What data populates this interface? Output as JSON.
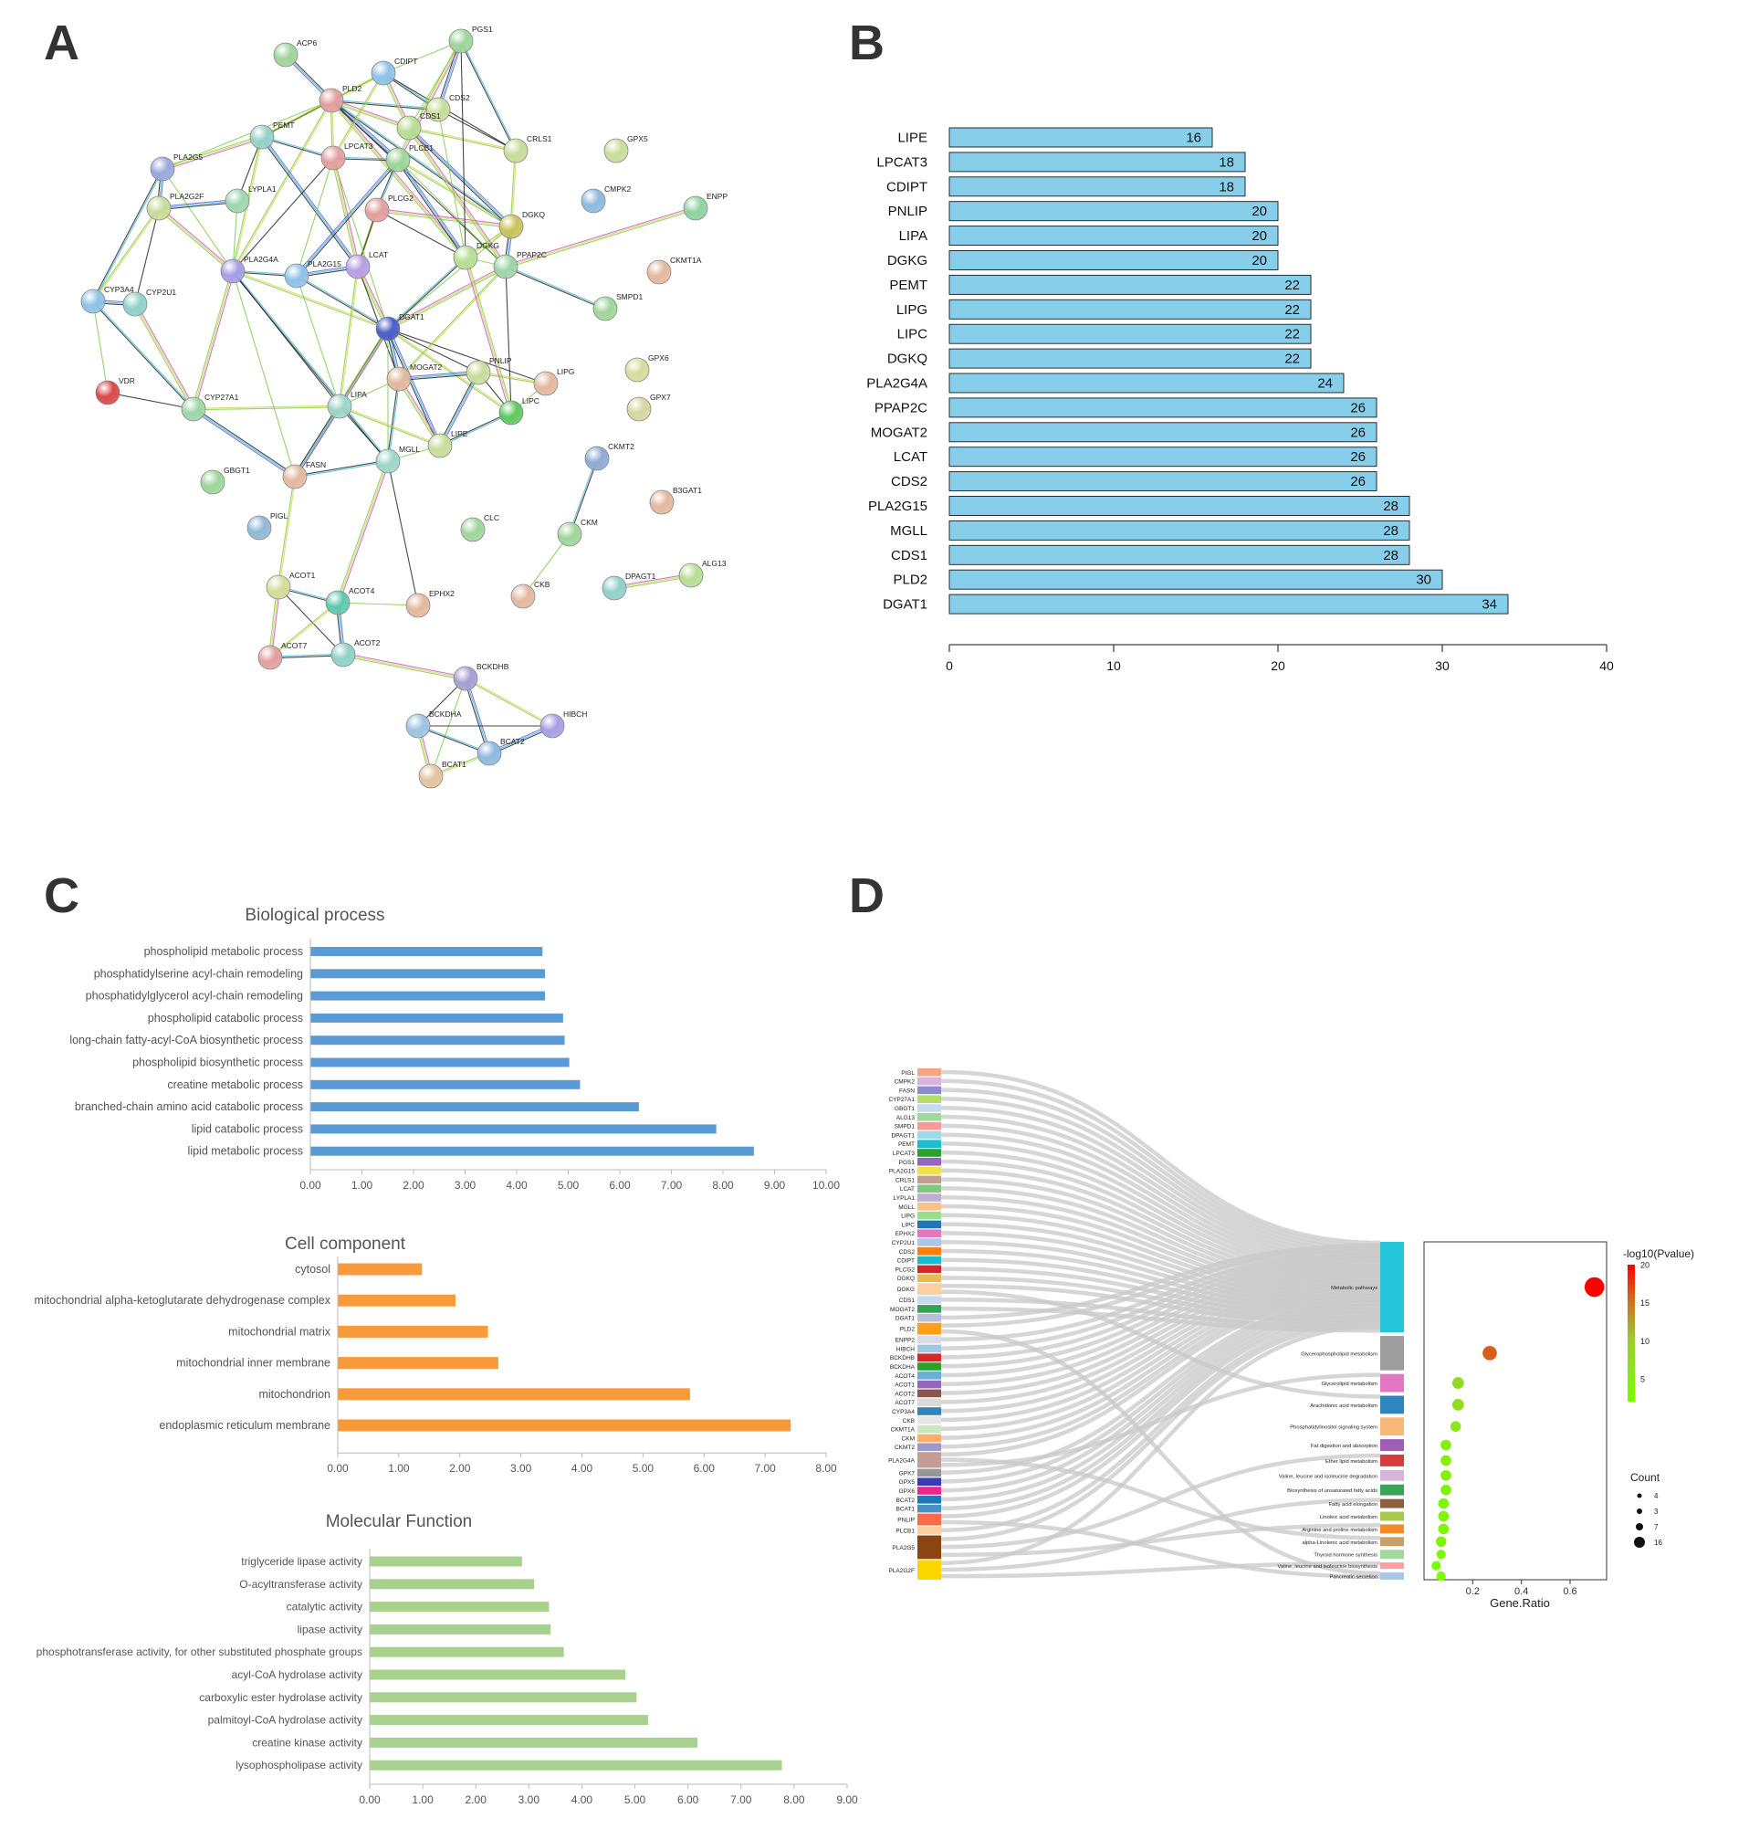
{
  "panel_labels": {
    "a": "A",
    "b": "B",
    "c": "C",
    "d": "D"
  },
  "chart_data": [
    {
      "id": "A",
      "type": "network",
      "title": "",
      "nodes": [
        {
          "id": "ACP6",
          "color": "#9fd59b"
        },
        {
          "id": "PGS1",
          "color": "#9fd59b"
        },
        {
          "id": "CDIPT",
          "color": "#8fc3e8"
        },
        {
          "id": "PLD2",
          "color": "#e39f9f"
        },
        {
          "id": "CDS2",
          "color": "#c9dc9a"
        },
        {
          "id": "CDS1",
          "color": "#b8dd93"
        },
        {
          "id": "CRLS1",
          "color": "#c9dc9a"
        },
        {
          "id": "GPX5",
          "color": "#c9dc9a"
        },
        {
          "id": "CMPK2",
          "color": "#8fb8e0"
        },
        {
          "id": "ENPP",
          "color": "#8ed1a0"
        },
        {
          "id": "PEMT",
          "color": "#93d1c9"
        },
        {
          "id": "LPCAT3",
          "color": "#e39f9f"
        },
        {
          "id": "PLCB1",
          "color": "#9fd59b"
        },
        {
          "id": "PLA2G5",
          "color": "#9aa9de"
        },
        {
          "id": "PLA2G2F",
          "color": "#c9dc9a"
        },
        {
          "id": "LYPLA1",
          "color": "#9fd5b0"
        },
        {
          "id": "PLCG2",
          "color": "#e39f9f"
        },
        {
          "id": "DGKQ",
          "color": "#c9c35a"
        },
        {
          "id": "CKMT1A",
          "color": "#e3b89f"
        },
        {
          "id": "DGKG",
          "color": "#b8dd93"
        },
        {
          "id": "PPAP2C",
          "color": "#9fd5a8"
        },
        {
          "id": "PLA2G4A",
          "color": "#a69fe3"
        },
        {
          "id": "PLA2G15",
          "color": "#8fc3e8"
        },
        {
          "id": "LCAT",
          "color": "#b79fe3"
        },
        {
          "id": "CYP3A4",
          "color": "#8fc3e8"
        },
        {
          "id": "CYP2U1",
          "color": "#8fd1c9"
        },
        {
          "id": "SMPD1",
          "color": "#9fd59b"
        },
        {
          "id": "DGAT1",
          "color": "#4a5fc9"
        },
        {
          "id": "GPX6",
          "color": "#d5dc9a"
        },
        {
          "id": "MOGAT2",
          "color": "#e3b89f"
        },
        {
          "id": "PNLIP",
          "color": "#c9dc9a"
        },
        {
          "id": "LIPG",
          "color": "#e3b89f"
        },
        {
          "id": "LIPC",
          "color": "#5fc95f"
        },
        {
          "id": "VDR",
          "color": "#d94a4a"
        },
        {
          "id": "CYP27A1",
          "color": "#9fd5a8"
        },
        {
          "id": "LIPA",
          "color": "#9fd5c9"
        },
        {
          "id": "GPX7",
          "color": "#d5d5a0"
        },
        {
          "id": "LIPE",
          "color": "#c9dc9a"
        },
        {
          "id": "MGLL",
          "color": "#9fd5c9"
        },
        {
          "id": "CKMT2",
          "color": "#8fa9d5"
        },
        {
          "id": "GBGT1",
          "color": "#9fd59b"
        },
        {
          "id": "FASN",
          "color": "#e3b89f"
        },
        {
          "id": "B3GAT1",
          "color": "#e3b89f"
        },
        {
          "id": "PIGL",
          "color": "#8fb8d5"
        },
        {
          "id": "CLC",
          "color": "#9fd59b"
        },
        {
          "id": "CKM",
          "color": "#9fd59b"
        },
        {
          "id": "ALG13",
          "color": "#b8dd93"
        },
        {
          "id": "DPAGT1",
          "color": "#8fd1c9"
        },
        {
          "id": "CKB",
          "color": "#e3b89f"
        },
        {
          "id": "ACOT1",
          "color": "#d5dc9a"
        },
        {
          "id": "ACOT4",
          "color": "#5fc9b0"
        },
        {
          "id": "EPHX2",
          "color": "#e3b89f"
        },
        {
          "id": "ACOT7",
          "color": "#e39f9f"
        },
        {
          "id": "ACOT2",
          "color": "#8fd1c9"
        },
        {
          "id": "BCKDHB",
          "color": "#a69fd5"
        },
        {
          "id": "BCKDHA",
          "color": "#9fc3e3"
        },
        {
          "id": "HIBCH",
          "color": "#a69fe3"
        },
        {
          "id": "BCAT2",
          "color": "#8fb8e0"
        },
        {
          "id": "BCAT1",
          "color": "#e3c39f"
        }
      ]
    },
    {
      "id": "B",
      "type": "bar",
      "orientation": "horizontal",
      "title": "",
      "xlabel": "",
      "ylabel": "",
      "xlim": [
        0,
        40
      ],
      "ticks": [
        "0",
        "10",
        "20",
        "30",
        "40"
      ],
      "categories": [
        "LIPE",
        "LPCAT3",
        "CDIPT",
        "PNLIP",
        "LIPA",
        "DGKG",
        "PEMT",
        "LIPG",
        "LIPC",
        "DGKQ",
        "PLA2G4A",
        "PPAP2C",
        "MOGAT2",
        "LCAT",
        "CDS2",
        "PLA2G15",
        "MGLL",
        "CDS1",
        "PLD2",
        "DGAT1"
      ],
      "values": [
        16,
        18,
        18,
        20,
        20,
        20,
        22,
        22,
        22,
        22,
        24,
        26,
        26,
        26,
        26,
        28,
        28,
        28,
        30,
        34
      ],
      "color": "#87ceeb"
    },
    {
      "id": "C1",
      "type": "bar",
      "orientation": "horizontal",
      "title": "Biological process",
      "xlim": [
        0,
        10
      ],
      "ticks": [
        "0.00",
        "1.00",
        "2.00",
        "3.00",
        "4.00",
        "5.00",
        "6.00",
        "7.00",
        "8.00",
        "9.00",
        "10.00"
      ],
      "categories": [
        "phospholipid metabolic process",
        "phosphatidylserine acyl-chain remodeling",
        "phosphatidylglycerol acyl-chain remodeling",
        "phospholipid catabolic process",
        "long-chain fatty-acyl-CoA biosynthetic process",
        "phospholipid biosynthetic process",
        "creatine metabolic process",
        "branched-chain amino acid catabolic process",
        "lipid catabolic process",
        "lipid metabolic process"
      ],
      "values": [
        4.5,
        4.55,
        4.55,
        4.9,
        4.93,
        5.02,
        5.23,
        6.37,
        7.87,
        8.6
      ],
      "color": "#5b9bd5"
    },
    {
      "id": "C2",
      "type": "bar",
      "orientation": "horizontal",
      "title": "Cell component",
      "xlim": [
        0,
        8
      ],
      "ticks": [
        "0.00",
        "1.00",
        "2.00",
        "3.00",
        "4.00",
        "5.00",
        "6.00",
        "7.00",
        "8.00"
      ],
      "categories": [
        "cytosol",
        "mitochondrial alpha-ketoglutarate dehydrogenase complex",
        "mitochondrial matrix",
        "mitochondrial inner membrane",
        "mitochondrion",
        "endoplasmic reticulum membrane"
      ],
      "values": [
        1.38,
        1.93,
        2.46,
        2.63,
        5.77,
        7.42
      ],
      "color": "#f79a3c"
    },
    {
      "id": "C3",
      "type": "bar",
      "orientation": "horizontal",
      "title": "Molecular Function",
      "xlim": [
        0,
        9
      ],
      "ticks": [
        "0.00",
        "1.00",
        "2.00",
        "3.00",
        "4.00",
        "5.00",
        "6.00",
        "7.00",
        "8.00",
        "9.00"
      ],
      "categories": [
        "triglyceride lipase activity",
        "O-acyltransferase activity",
        "catalytic activity",
        "lipase activity",
        "phosphotransferase activity, for other substituted phosphate groups",
        "acyl-CoA hydrolase activity",
        "carboxylic ester hydrolase activity",
        "palmitoyl-CoA hydrolase activity",
        "creatine kinase activity",
        "lysophospholipase activity"
      ],
      "values": [
        2.87,
        3.1,
        3.38,
        3.41,
        3.66,
        4.82,
        5.03,
        5.25,
        6.18,
        7.77
      ],
      "color": "#a9d18e"
    },
    {
      "id": "D",
      "type": "sankey-dotplot",
      "genes": [
        "PIGL",
        "CMPK2",
        "FASN",
        "CYP27A1",
        "GBGT1",
        "ALG13",
        "SMPD1",
        "DPAGT1",
        "PEMT",
        "LPCAT3",
        "PGS1",
        "PLA2G15",
        "CRLS1",
        "LCAT",
        "LYPLA1",
        "MGLL",
        "LIPG",
        "LIPC",
        "EPHX2",
        "CYP2U1",
        "CDS2",
        "CDIPT",
        "PLCG2",
        "DGKQ",
        "DGKG",
        "CDS1",
        "MOGAT2",
        "DGAT1",
        "PLD2",
        "ENPP2",
        "HIBCH",
        "BCKDHB",
        "BCKDHA",
        "ACOT4",
        "ACOT1",
        "ACOT2",
        "ACOT7",
        "CYP3A4",
        "CKB",
        "CKMT1A",
        "CKM",
        "CKMT2",
        "PLA2G4A",
        "GPX7",
        "GPX5",
        "GPX6",
        "BCAT2",
        "BCAT1",
        "PNLIP",
        "PLCB1",
        "PLA2G5",
        "PLA2G2F"
      ],
      "gene_colors": [
        "#f4a582",
        "#d9b3e0",
        "#8c8ccf",
        "#b3de69",
        "#c6dbef",
        "#a1d99b",
        "#ff9896",
        "#9edae5",
        "#17becf",
        "#2ca02c",
        "#9467bd",
        "#f0e442",
        "#c49c94",
        "#7fc97f",
        "#beaed4",
        "#fdc086",
        "#98df8a",
        "#1f77b4",
        "#e377c2",
        "#aec7e8",
        "#ff7f0e",
        "#17becf",
        "#d62728",
        "#e7ba52",
        "#fdd0a2",
        "#c6dbef",
        "#31a354",
        "#bcbddc",
        "#ff9f1c",
        "#dadaeb",
        "#9ecae1",
        "#d62728",
        "#2ca02c",
        "#6baed6",
        "#9467bd",
        "#8c564b",
        "#d9d9d9",
        "#3182bd",
        "#e7e7e7",
        "#c7e9c0",
        "#fdae6b",
        "#9e9ac8",
        "#c49c94",
        "#969696",
        "#3b3bb3",
        "#e7298a",
        "#1f77b4",
        "#4a8fc0",
        "#fb6a4a",
        "#fdd0a2",
        "#8b4513",
        "#ffd700"
      ],
      "gene_weights": [
        1,
        1,
        1,
        1,
        1,
        1,
        1,
        1,
        1,
        1,
        1,
        1,
        1,
        1,
        1,
        1,
        1,
        1,
        1,
        1,
        1,
        1,
        1,
        1,
        1.5,
        1,
        1,
        1,
        1.5,
        1,
        1,
        1,
        1,
        1,
        1,
        1,
        1,
        1,
        1,
        1,
        1,
        1,
        2,
        1,
        1,
        1,
        1,
        1,
        1.5,
        1,
        3,
        2.5
      ],
      "pathways": [
        "Metabolic pathways",
        "Glycerophospholipid metabolism",
        "Glycerolipid metabolism",
        "Arachidonic acid metabolism",
        "Phosphatidylinositol signaling system",
        "Fat digestion and absorption",
        "Ether lipid metabolism",
        "Valine, leucine and isoleucine degradation",
        "Biosynthesis of unsaturated fatty acids",
        "Fatty acid elongation",
        "Linoleic acid metabolism",
        "Arginine and proline metabolism",
        "alpha-Linolenic acid metabolism",
        "Thyroid hormone synthesis",
        "Valine, leucine and isoleucine biosynthesis",
        "Pancreatic secretion"
      ],
      "pathway_colors": [
        "#26c6da",
        "#9e9e9e",
        "#e377c2",
        "#2e86c1",
        "#f8b878",
        "#9c5fb5",
        "#d73c3c",
        "#d7b5d8",
        "#3aa655",
        "#8c5e3c",
        "#a8c84a",
        "#f28c28",
        "#c9a06a",
        "#a1d99b",
        "#ff9ea0",
        "#a6c8e8"
      ],
      "pathway_weights": [
        10,
        3.8,
        2,
        2,
        2,
        1.3,
        1.3,
        1.2,
        1.2,
        1,
        1,
        1,
        1,
        1,
        0.7,
        0.8
      ],
      "gene_ratio": [
        0.7,
        0.27,
        0.14,
        0.14,
        0.13,
        0.09,
        0.09,
        0.09,
        0.09,
        0.08,
        0.08,
        0.08,
        0.07,
        0.07,
        0.05,
        0.07
      ],
      "neg_log10_p": [
        20,
        16,
        8,
        7,
        6,
        4,
        4,
        4,
        4,
        3,
        3,
        3,
        3,
        3,
        2,
        2
      ],
      "count": [
        16,
        7,
        4,
        4,
        3,
        3,
        3,
        3,
        3,
        3,
        3,
        3,
        3,
        2,
        2,
        2
      ],
      "dot_xlabel": "Gene.Ratio",
      "dot_xticks": [
        "0.2",
        "0.4",
        "0.6"
      ],
      "dot_xlim": [
        0,
        0.75
      ],
      "colorbar_title": "-log10(Pvalue)",
      "colorbar_ticks": [
        "20",
        "15",
        "10",
        "5"
      ],
      "size_legend_title": "Count",
      "size_legend_values": [
        "4",
        "3",
        "7",
        "16"
      ]
    }
  ]
}
